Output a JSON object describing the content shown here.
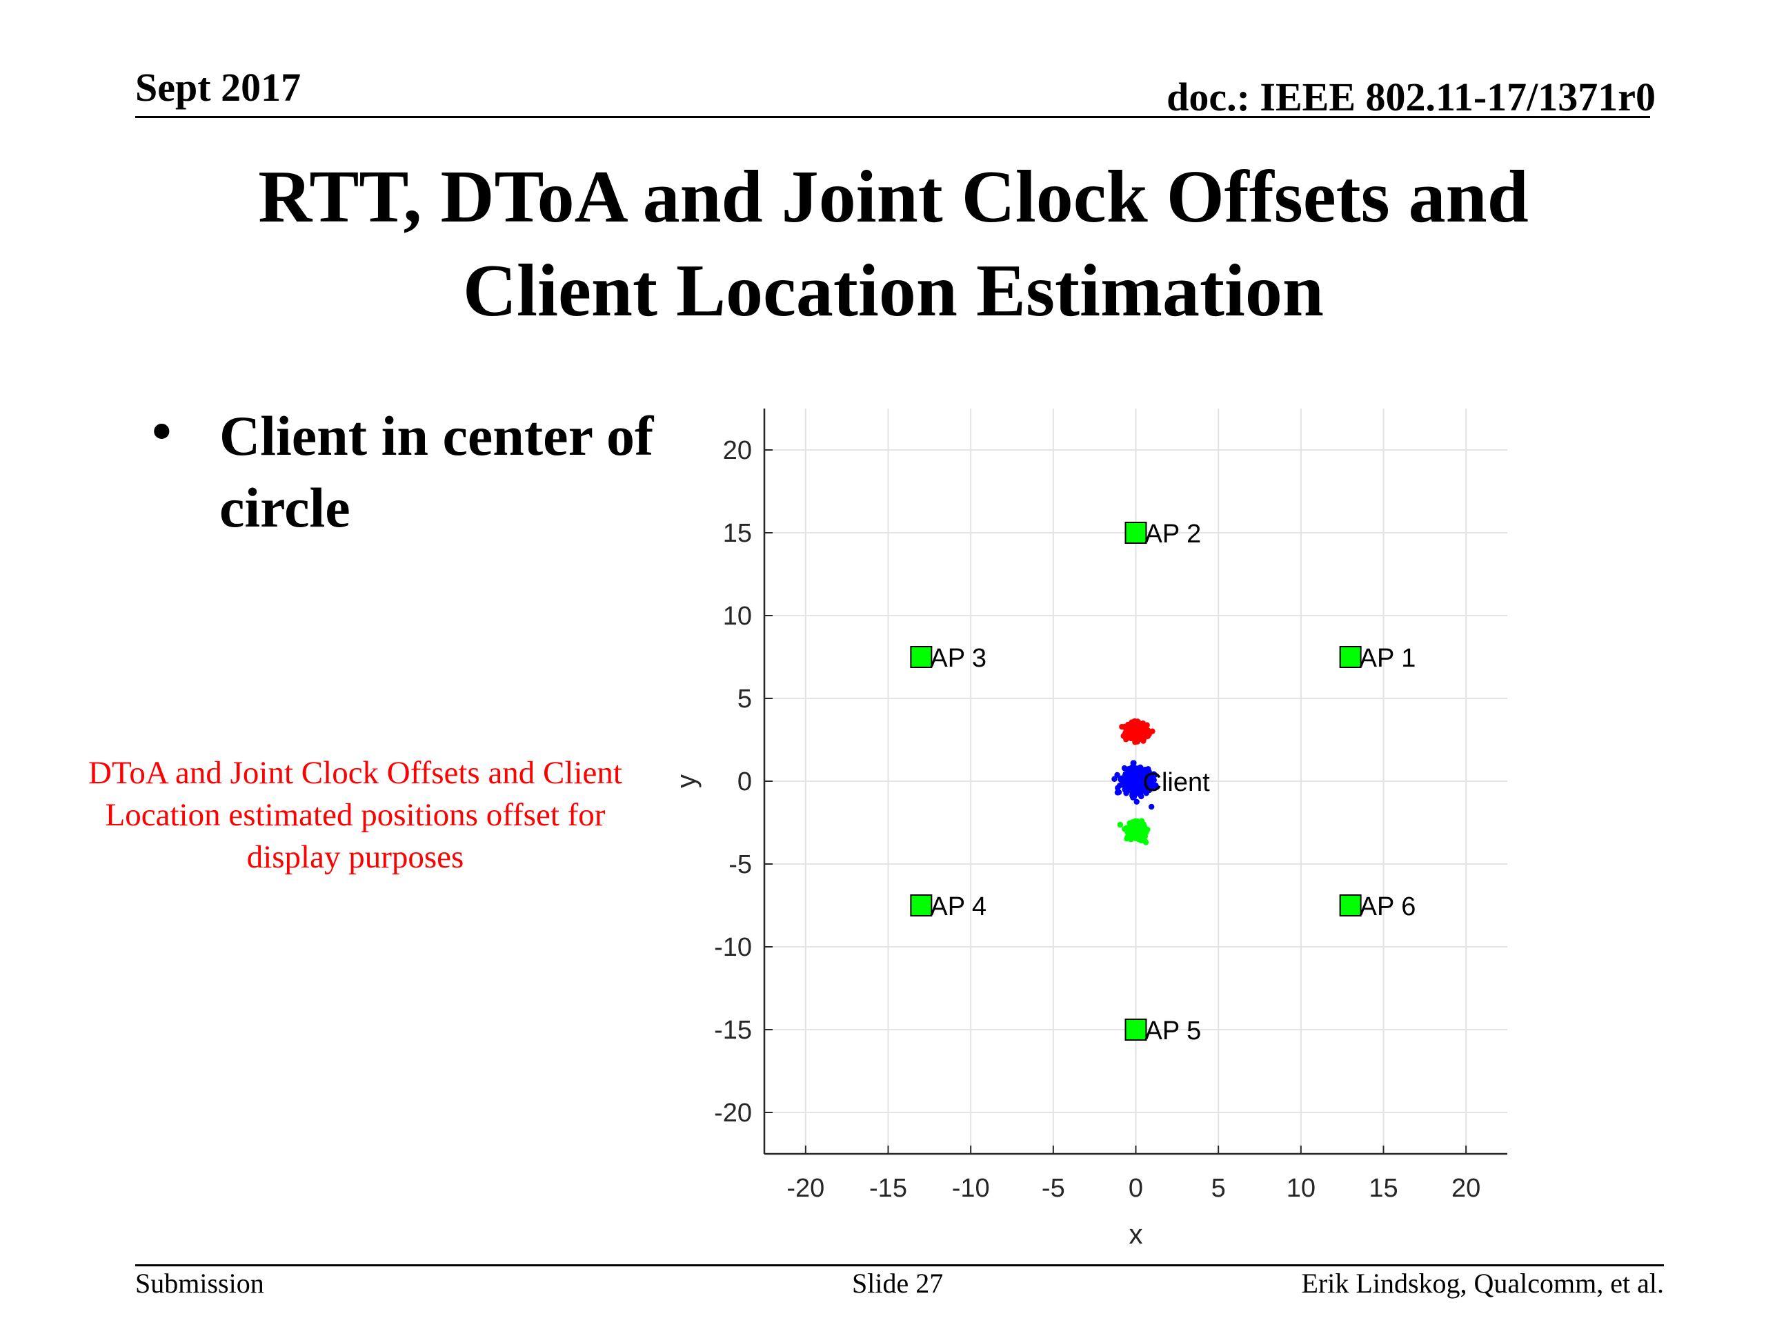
{
  "header": {
    "date": "Sept 2017",
    "doc": "doc.: IEEE 802.11-17/1371r0"
  },
  "slide": {
    "title_line1": "RTT, DToA and Joint Clock Offsets and",
    "title_line2": "Client Location Estimation",
    "bullet": "Client in center of circle",
    "note": "DToA and Joint Clock Offsets and Client Location estimated positions offset for display purposes",
    "note_color": "#ff0000"
  },
  "footer": {
    "left": "Submission",
    "center": "Slide 27",
    "right": "Erik Lindskog, Qualcomm, et al."
  },
  "chart_data": {
    "type": "scatter",
    "xlabel": "x",
    "ylabel": "y",
    "xlim": [
      -22.5,
      22.5
    ],
    "ylim": [
      -22.5,
      22.5
    ],
    "xticks": [
      -20,
      -15,
      -10,
      -5,
      0,
      5,
      10,
      15,
      20
    ],
    "yticks": [
      -20,
      -15,
      -10,
      -5,
      0,
      5,
      10,
      15,
      20
    ],
    "grid": true,
    "access_points": {
      "marker_color": "#00ff00",
      "points": [
        {
          "label": "AP 1",
          "x": 13,
          "y": 7.5
        },
        {
          "label": "AP 2",
          "x": 0,
          "y": 15
        },
        {
          "label": "AP 3",
          "x": -13,
          "y": 7.5
        },
        {
          "label": "AP 4",
          "x": -13,
          "y": -7.5
        },
        {
          "label": "AP 5",
          "x": 0,
          "y": -15
        },
        {
          "label": "AP 6",
          "x": 13,
          "y": -7.5
        }
      ]
    },
    "client": {
      "label": "Client",
      "x": 0,
      "y": 0
    },
    "estimate_clusters": [
      {
        "color": "#ff0000",
        "center": [
          0,
          3
        ],
        "spread": [
          0.55,
          0.45
        ],
        "points": 320
      },
      {
        "color": "#0000ff",
        "center": [
          0,
          0
        ],
        "spread": [
          0.8,
          0.65
        ],
        "points": 420
      },
      {
        "color": "#00ff00",
        "center": [
          0,
          -3
        ],
        "spread": [
          0.45,
          0.45
        ],
        "points": 320
      }
    ]
  }
}
